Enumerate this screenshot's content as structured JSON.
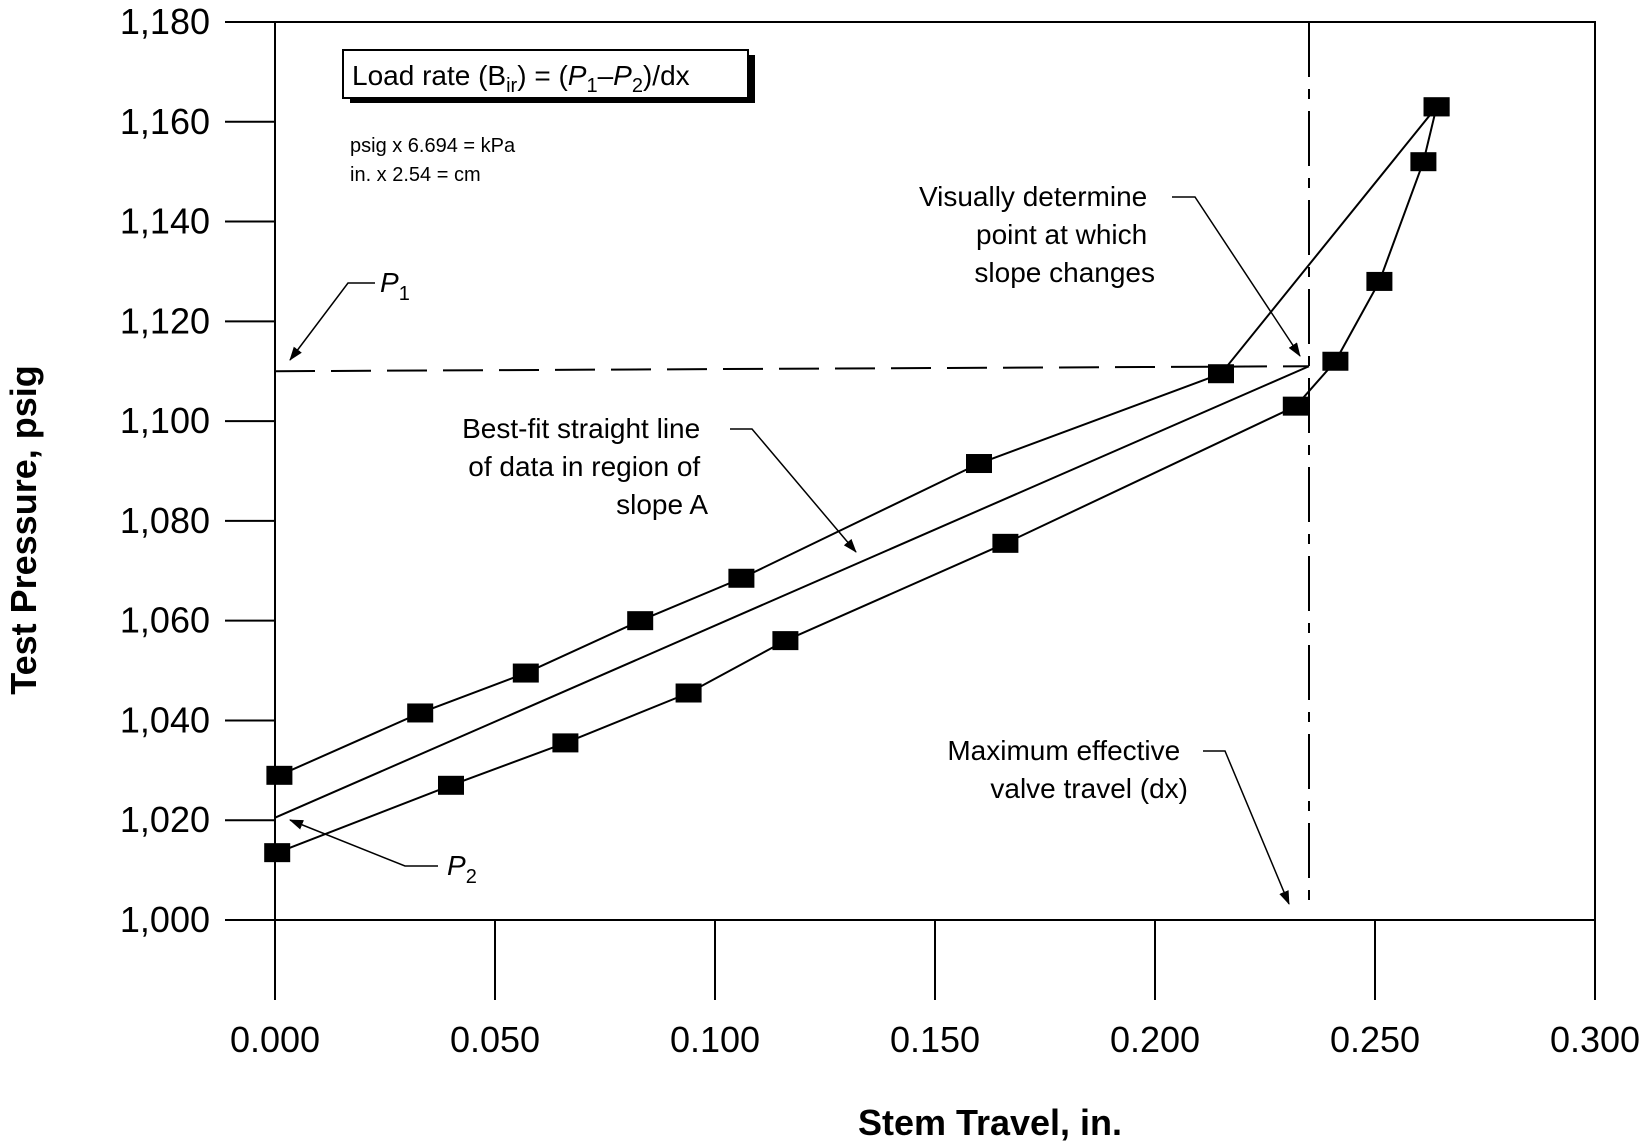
{
  "chart_data": {
    "type": "scatter",
    "xlabel": "Stem Travel, in.",
    "ylabel": "Test Pressure, psig",
    "xlim": [
      0,
      0.3
    ],
    "ylim": [
      1000,
      1180
    ],
    "x_ticks": [
      0,
      0.05,
      0.1,
      0.15,
      0.2,
      0.25,
      0.3
    ],
    "x_tick_labels": [
      "0.000",
      "0.050",
      "0.100",
      "0.150",
      "0.200",
      "0.250",
      "0.300"
    ],
    "y_ticks": [
      1000,
      1020,
      1040,
      1060,
      1080,
      1100,
      1120,
      1140,
      1160,
      1180
    ],
    "y_tick_labels": [
      "1,000",
      "1,020",
      "1,040",
      "1,060",
      "1,080",
      "1,100",
      "1,120",
      "1,140",
      "1,160",
      "1,180"
    ],
    "grid": false,
    "series": [
      {
        "values": [
          [
            0.001,
            1029
          ],
          [
            0.033,
            1041.5
          ],
          [
            0.057,
            1049.5
          ],
          [
            0.083,
            1060
          ],
          [
            0.106,
            1068.5
          ],
          [
            0.16,
            1091.5
          ],
          [
            0.215,
            1109.5
          ],
          [
            0.264,
            1163
          ]
        ]
      },
      {
        "values": [
          [
            0.0005,
            1013.5
          ],
          [
            0.04,
            1027
          ],
          [
            0.066,
            1035.5
          ],
          [
            0.094,
            1045.5
          ],
          [
            0.116,
            1056
          ],
          [
            0.166,
            1075.5
          ],
          [
            0.232,
            1103
          ],
          [
            0.241,
            1112
          ],
          [
            0.251,
            1128
          ],
          [
            0.261,
            1152
          ],
          [
            0.264,
            1163
          ]
        ]
      }
    ],
    "best_fit_line": {
      "x": [
        0,
        0.235
      ],
      "y": [
        1020.5,
        1111
      ]
    },
    "reference_lines": {
      "p1_dashed": {
        "x": [
          0,
          0.235
        ],
        "y": [
          1110,
          1111
        ]
      },
      "dx_dashed_x": 0.235
    },
    "annotations": {
      "formula_box": {
        "prefix": "Load rate (B",
        "subscript": "ir",
        "mid": ") = (",
        "p": "P",
        "one": "1",
        "minus": "–",
        "two": "2",
        "suffix": ")/dx"
      },
      "conversions": [
        "psig x 6.694 = kPa",
        "in. x 2.54 = cm"
      ],
      "p1_label": {
        "letter": "P",
        "sub": "1"
      },
      "p2_label": {
        "letter": "P",
        "sub": "2"
      },
      "slope_change_lines": [
        "Visually determine",
        "point at which",
        "slope changes"
      ],
      "best_fit_lines": [
        "Best-fit straight line",
        "of data in region of",
        "slope A"
      ],
      "max_travel_lines": [
        "Maximum effective",
        "valve travel (dx)"
      ]
    }
  }
}
